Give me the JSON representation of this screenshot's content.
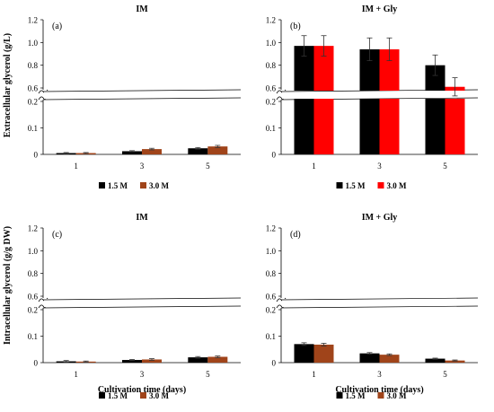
{
  "figure": {
    "ylabel_top": "Extracellular glycerol (g/L)",
    "ylabel_bottom": "Intracellular glycerol (g/g DW)",
    "xlabel": "Cultivation time (days)"
  },
  "colors": {
    "black": "#000000",
    "red": "#ff0000",
    "brown": "#a0441a"
  },
  "chart_data": [
    {
      "type": "bar",
      "panel": "(a)",
      "title": "IM",
      "categories": [
        "1",
        "3",
        "5"
      ],
      "series": [
        {
          "name": "1.5 M",
          "color": "#000000",
          "values": [
            0.005,
            0.012,
            0.023
          ],
          "errors": [
            0.002,
            0.002,
            0.003
          ]
        },
        {
          "name": "3.0 M",
          "color": "#a0441a",
          "values": [
            0.005,
            0.02,
            0.03
          ],
          "errors": [
            0.002,
            0.003,
            0.004
          ]
        }
      ],
      "xlabel": "",
      "ylabel": "Extracellular glycerol (g/L)",
      "ylim_lower": [
        0,
        0.2
      ],
      "ylim_upper": [
        0.6,
        1.2
      ],
      "yticks": [
        "0",
        "0.1",
        "0.2",
        "0.6",
        "0.8",
        "1.0",
        "1.2"
      ],
      "legend": [
        "1.5 M",
        "3.0 M"
      ],
      "legend_position": "bottom",
      "broken_axis": true
    },
    {
      "type": "bar",
      "panel": "(b)",
      "title": "IM + Gly",
      "categories": [
        "1",
        "3",
        "5"
      ],
      "series": [
        {
          "name": "1.5 M",
          "color": "#000000",
          "values": [
            0.97,
            0.94,
            0.8
          ],
          "errors": [
            0.09,
            0.1,
            0.09
          ]
        },
        {
          "name": "3.0 M",
          "color": "#ff0000",
          "values": [
            0.97,
            0.94,
            0.61
          ],
          "errors": [
            0.09,
            0.1,
            0.08
          ]
        }
      ],
      "xlabel": "",
      "ylabel": "",
      "ylim_lower": [
        0,
        0.2
      ],
      "ylim_upper": [
        0.6,
        1.2
      ],
      "yticks": [
        "0",
        "0.1",
        "0.2",
        "0.6",
        "0.8",
        "1.0",
        "1.2"
      ],
      "legend": [
        "1.5 M",
        "3.0 M"
      ],
      "legend_position": "bottom",
      "broken_axis": true
    },
    {
      "type": "bar",
      "panel": "(c)",
      "title": "IM",
      "categories": [
        "1",
        "3",
        "5"
      ],
      "series": [
        {
          "name": "1.5 M",
          "color": "#000000",
          "values": [
            0.005,
            0.01,
            0.02
          ],
          "errors": [
            0.003,
            0.002,
            0.003
          ]
        },
        {
          "name": "3.0 M",
          "color": "#a0441a",
          "values": [
            0.004,
            0.012,
            0.022
          ],
          "errors": [
            0.002,
            0.003,
            0.003
          ]
        }
      ],
      "xlabel": "Cultivation time (days)",
      "ylabel": "Intracellular glycerol (g/g DW)",
      "ylim_lower": [
        0,
        0.2
      ],
      "ylim_upper": [
        0.6,
        1.2
      ],
      "yticks": [
        "0",
        "0.1",
        "0.2",
        "0.6",
        "0.8",
        "1.0",
        "1.2"
      ],
      "legend": [
        "1.5 M",
        "3.0 M"
      ],
      "legend_position": "bottom",
      "broken_axis": true
    },
    {
      "type": "bar",
      "panel": "(d)",
      "title": "IM + Gly",
      "categories": [
        "1",
        "3",
        "5"
      ],
      "series": [
        {
          "name": "1.5 M",
          "color": "#000000",
          "values": [
            0.07,
            0.035,
            0.015
          ],
          "errors": [
            0.005,
            0.003,
            0.002
          ]
        },
        {
          "name": "3.0 M",
          "color": "#a0441a",
          "values": [
            0.068,
            0.03,
            0.008
          ],
          "errors": [
            0.005,
            0.003,
            0.002
          ]
        }
      ],
      "xlabel": "Cultivation time (days)",
      "ylabel": "",
      "ylim_lower": [
        0,
        0.2
      ],
      "ylim_upper": [
        0.6,
        1.2
      ],
      "yticks": [
        "0",
        "0.1",
        "0.2",
        "0.6",
        "0.8",
        "1.0",
        "1.2"
      ],
      "legend": [
        "1.5 M",
        "3.0 M"
      ],
      "legend_position": "bottom",
      "broken_axis": true
    }
  ]
}
